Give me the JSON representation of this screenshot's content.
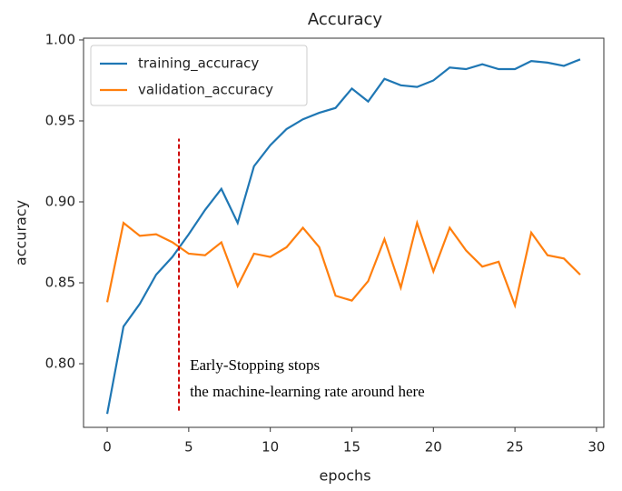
{
  "chart_data": {
    "type": "line",
    "title": "Accuracy",
    "x_label": "epochs",
    "y_label": "accuracy",
    "x": [
      0,
      1,
      2,
      3,
      4,
      5,
      6,
      7,
      8,
      9,
      10,
      11,
      12,
      13,
      14,
      15,
      16,
      17,
      18,
      19,
      20,
      21,
      22,
      23,
      24,
      25,
      26,
      27,
      28,
      29
    ],
    "series": [
      {
        "name": "training_accuracy",
        "color": "#1f77b4",
        "values": [
          0.769,
          0.823,
          0.837,
          0.855,
          0.866,
          0.88,
          0.895,
          0.908,
          0.887,
          0.922,
          0.935,
          0.945,
          0.951,
          0.955,
          0.958,
          0.97,
          0.962,
          0.976,
          0.972,
          0.971,
          0.975,
          0.983,
          0.982,
          0.985,
          0.982,
          0.982,
          0.987,
          0.986,
          0.984,
          0.988
        ]
      },
      {
        "name": "validation_accuracy",
        "color": "#ff7f0e",
        "values": [
          0.838,
          0.887,
          0.879,
          0.88,
          0.875,
          0.868,
          0.867,
          0.875,
          0.848,
          0.868,
          0.866,
          0.872,
          0.884,
          0.872,
          0.842,
          0.839,
          0.851,
          0.877,
          0.847,
          0.887,
          0.857,
          0.884,
          0.87,
          0.86,
          0.863,
          0.836,
          0.881,
          0.867,
          0.865,
          0.855
        ]
      }
    ],
    "xlim": [
      -1.45,
      30.45
    ],
    "xticks": [
      0,
      5,
      10,
      15,
      20,
      25,
      30
    ],
    "ylim": [
      0.7607,
      1.0011
    ],
    "yticks": [
      {
        "value": 0.8,
        "label": "0.80"
      },
      0.85,
      {
        "value": 0.9,
        "label": "0.90"
      },
      0.95,
      {
        "value": 1.0,
        "label": "1.00"
      }
    ],
    "legend": "upper left",
    "annotation": {
      "lines": [
        "Early-Stopping stops",
        "the machine-learning rate around here"
      ],
      "x": 4.4,
      "y": [
        0.771,
        0.939
      ],
      "color": "#cc0000"
    }
  }
}
